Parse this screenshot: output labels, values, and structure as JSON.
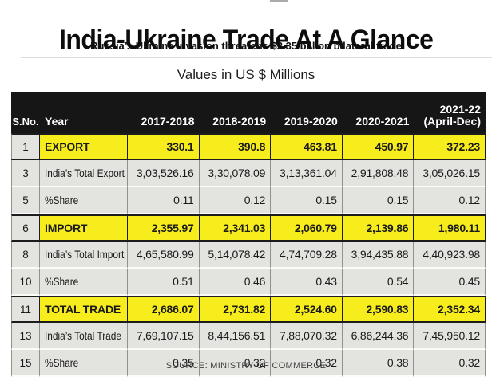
{
  "page": {
    "title": "India-Ukraine Trade At A Glance",
    "subtitle": "Russia’s Ukraine invasion threatens $2.35 billion bilateral trade",
    "units_label": "Values in US $ Millions",
    "source": "SOURCE: MINISTRY OF COMMERCE"
  },
  "colors": {
    "highlight_yellow": "#f8ed1c",
    "header_black": "#161616",
    "row_gray": "#e3e3df"
  },
  "table": {
    "columns": [
      {
        "label": "S.No."
      },
      {
        "label": "Year"
      },
      {
        "label": "2017-2018"
      },
      {
        "label": "2018-2019"
      },
      {
        "label": "2019-2020"
      },
      {
        "label": "2020-2021"
      },
      {
        "label": "2021-22",
        "sublabel": "(April-Dec)"
      }
    ],
    "rows": [
      {
        "sno": "1",
        "label": "EXPORT",
        "highlight": true,
        "values": [
          "330.1",
          "390.8",
          "463.81",
          "450.97",
          "372.23"
        ]
      },
      {
        "sno": "3",
        "label": "India’s Total Export",
        "highlight": false,
        "values": [
          "3,03,526.16",
          "3,30,078.09",
          "3,13,361.04",
          "2,91,808.48",
          "3,05,026.15"
        ]
      },
      {
        "sno": "5",
        "label": "%Share",
        "highlight": false,
        "values": [
          "0.11",
          "0.12",
          "0.15",
          "0.15",
          "0.12"
        ]
      },
      {
        "sno": "6",
        "label": "IMPORT",
        "highlight": true,
        "values": [
          "2,355.97",
          "2,341.03",
          "2,060.79",
          "2,139.86",
          "1,980.11"
        ]
      },
      {
        "sno": "8",
        "label": "India’s Total Import",
        "highlight": false,
        "values": [
          "4,65,580.99",
          "5,14,078.42",
          "4,74,709.28",
          "3,94,435.88",
          "4,40,923.98"
        ]
      },
      {
        "sno": "10",
        "label": "%Share",
        "highlight": false,
        "values": [
          "0.51",
          "0.46",
          "0.43",
          "0.54",
          "0.45"
        ]
      },
      {
        "sno": "11",
        "label": "TOTAL TRADE",
        "highlight": true,
        "values": [
          "2,686.07",
          "2,731.82",
          "2,524.60",
          "2,590.83",
          "2,352.34"
        ]
      },
      {
        "sno": "13",
        "label": "India’s Total Trade",
        "highlight": false,
        "values": [
          "7,69,107.15",
          "8,44,156.51",
          "7,88,070.32",
          "6,86,244.36",
          "7,45,950.12"
        ]
      },
      {
        "sno": "15",
        "label": "%Share",
        "highlight": false,
        "values": [
          "0.35",
          "0.32",
          "0.32",
          "0.38",
          "0.32"
        ]
      }
    ]
  },
  "chart_data": {
    "type": "table",
    "title": "India-Ukraine Trade At A Glance",
    "subtitle": "Russia’s Ukraine invasion threatens $2.35 billion bilateral trade",
    "units": "US $ Millions",
    "categories": [
      "2017-2018",
      "2018-2019",
      "2019-2020",
      "2020-2021",
      "2021-22 (April-Dec)"
    ],
    "series": [
      {
        "name": "EXPORT",
        "values": [
          330.1,
          390.8,
          463.81,
          450.97,
          372.23
        ]
      },
      {
        "name": "India's Total Export",
        "values": [
          303526.16,
          330078.09,
          313361.04,
          291808.48,
          305026.15
        ]
      },
      {
        "name": "%Share (Export)",
        "values": [
          0.11,
          0.12,
          0.15,
          0.15,
          0.12
        ]
      },
      {
        "name": "IMPORT",
        "values": [
          2355.97,
          2341.03,
          2060.79,
          2139.86,
          1980.11
        ]
      },
      {
        "name": "India's Total Import",
        "values": [
          465580.99,
          514078.42,
          474709.28,
          394435.88,
          440923.98
        ]
      },
      {
        "name": "%Share (Import)",
        "values": [
          0.51,
          0.46,
          0.43,
          0.54,
          0.45
        ]
      },
      {
        "name": "TOTAL TRADE",
        "values": [
          2686.07,
          2731.82,
          2524.6,
          2590.83,
          2352.34
        ]
      },
      {
        "name": "India's Total Trade",
        "values": [
          769107.15,
          844156.51,
          788070.32,
          686244.36,
          745950.12
        ]
      },
      {
        "name": "%Share (Total)",
        "values": [
          0.35,
          0.32,
          0.32,
          0.38,
          0.32
        ]
      }
    ],
    "source": "MINISTRY OF COMMERCE",
    "legend_position": "none",
    "grid": false
  }
}
